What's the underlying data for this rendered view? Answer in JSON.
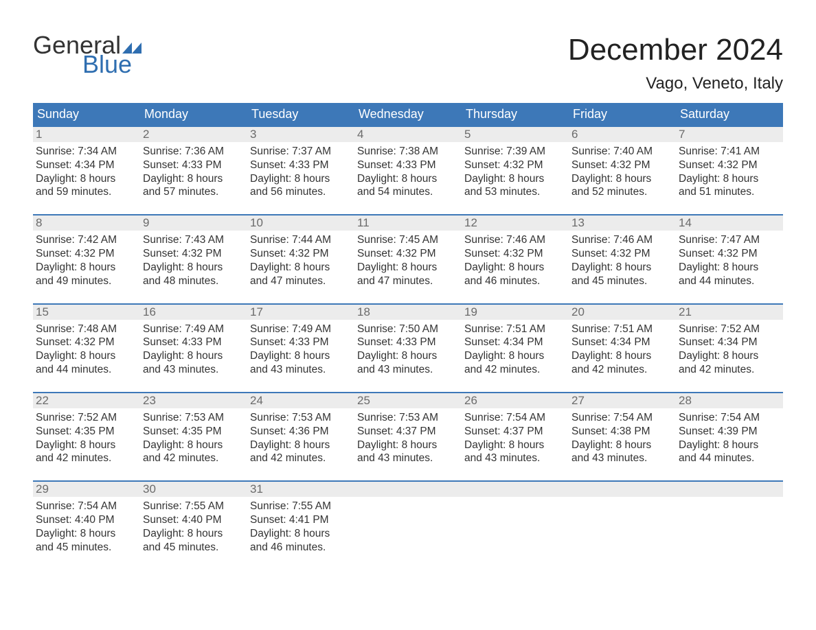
{
  "brand": {
    "word1": "General",
    "word2": "Blue",
    "color1": "#333333",
    "color2": "#2f6eb0"
  },
  "title": "December 2024",
  "location": "Vago, Veneto, Italy",
  "colors": {
    "header_bg": "#3d78b8",
    "header_text": "#ffffff",
    "daynum_bg": "#ececec",
    "daynum_text": "#6b6b6b",
    "body_text": "#333333",
    "week_border": "#3d78b8"
  },
  "fonts": {
    "title_size_pt": 33,
    "location_size_pt": 18,
    "dow_size_pt": 14,
    "body_size_pt": 12
  },
  "calendar": {
    "type": "table",
    "columns": [
      "Sunday",
      "Monday",
      "Tuesday",
      "Wednesday",
      "Thursday",
      "Friday",
      "Saturday"
    ],
    "weeks": [
      [
        {
          "n": "1",
          "sunrise": "7:34 AM",
          "sunset": "4:34 PM",
          "dl1": "8 hours",
          "dl2": "and 59 minutes."
        },
        {
          "n": "2",
          "sunrise": "7:36 AM",
          "sunset": "4:33 PM",
          "dl1": "8 hours",
          "dl2": "and 57 minutes."
        },
        {
          "n": "3",
          "sunrise": "7:37 AM",
          "sunset": "4:33 PM",
          "dl1": "8 hours",
          "dl2": "and 56 minutes."
        },
        {
          "n": "4",
          "sunrise": "7:38 AM",
          "sunset": "4:33 PM",
          "dl1": "8 hours",
          "dl2": "and 54 minutes."
        },
        {
          "n": "5",
          "sunrise": "7:39 AM",
          "sunset": "4:32 PM",
          "dl1": "8 hours",
          "dl2": "and 53 minutes."
        },
        {
          "n": "6",
          "sunrise": "7:40 AM",
          "sunset": "4:32 PM",
          "dl1": "8 hours",
          "dl2": "and 52 minutes."
        },
        {
          "n": "7",
          "sunrise": "7:41 AM",
          "sunset": "4:32 PM",
          "dl1": "8 hours",
          "dl2": "and 51 minutes."
        }
      ],
      [
        {
          "n": "8",
          "sunrise": "7:42 AM",
          "sunset": "4:32 PM",
          "dl1": "8 hours",
          "dl2": "and 49 minutes."
        },
        {
          "n": "9",
          "sunrise": "7:43 AM",
          "sunset": "4:32 PM",
          "dl1": "8 hours",
          "dl2": "and 48 minutes."
        },
        {
          "n": "10",
          "sunrise": "7:44 AM",
          "sunset": "4:32 PM",
          "dl1": "8 hours",
          "dl2": "and 47 minutes."
        },
        {
          "n": "11",
          "sunrise": "7:45 AM",
          "sunset": "4:32 PM",
          "dl1": "8 hours",
          "dl2": "and 47 minutes."
        },
        {
          "n": "12",
          "sunrise": "7:46 AM",
          "sunset": "4:32 PM",
          "dl1": "8 hours",
          "dl2": "and 46 minutes."
        },
        {
          "n": "13",
          "sunrise": "7:46 AM",
          "sunset": "4:32 PM",
          "dl1": "8 hours",
          "dl2": "and 45 minutes."
        },
        {
          "n": "14",
          "sunrise": "7:47 AM",
          "sunset": "4:32 PM",
          "dl1": "8 hours",
          "dl2": "and 44 minutes."
        }
      ],
      [
        {
          "n": "15",
          "sunrise": "7:48 AM",
          "sunset": "4:32 PM",
          "dl1": "8 hours",
          "dl2": "and 44 minutes."
        },
        {
          "n": "16",
          "sunrise": "7:49 AM",
          "sunset": "4:33 PM",
          "dl1": "8 hours",
          "dl2": "and 43 minutes."
        },
        {
          "n": "17",
          "sunrise": "7:49 AM",
          "sunset": "4:33 PM",
          "dl1": "8 hours",
          "dl2": "and 43 minutes."
        },
        {
          "n": "18",
          "sunrise": "7:50 AM",
          "sunset": "4:33 PM",
          "dl1": "8 hours",
          "dl2": "and 43 minutes."
        },
        {
          "n": "19",
          "sunrise": "7:51 AM",
          "sunset": "4:34 PM",
          "dl1": "8 hours",
          "dl2": "and 42 minutes."
        },
        {
          "n": "20",
          "sunrise": "7:51 AM",
          "sunset": "4:34 PM",
          "dl1": "8 hours",
          "dl2": "and 42 minutes."
        },
        {
          "n": "21",
          "sunrise": "7:52 AM",
          "sunset": "4:34 PM",
          "dl1": "8 hours",
          "dl2": "and 42 minutes."
        }
      ],
      [
        {
          "n": "22",
          "sunrise": "7:52 AM",
          "sunset": "4:35 PM",
          "dl1": "8 hours",
          "dl2": "and 42 minutes."
        },
        {
          "n": "23",
          "sunrise": "7:53 AM",
          "sunset": "4:35 PM",
          "dl1": "8 hours",
          "dl2": "and 42 minutes."
        },
        {
          "n": "24",
          "sunrise": "7:53 AM",
          "sunset": "4:36 PM",
          "dl1": "8 hours",
          "dl2": "and 42 minutes."
        },
        {
          "n": "25",
          "sunrise": "7:53 AM",
          "sunset": "4:37 PM",
          "dl1": "8 hours",
          "dl2": "and 43 minutes."
        },
        {
          "n": "26",
          "sunrise": "7:54 AM",
          "sunset": "4:37 PM",
          "dl1": "8 hours",
          "dl2": "and 43 minutes."
        },
        {
          "n": "27",
          "sunrise": "7:54 AM",
          "sunset": "4:38 PM",
          "dl1": "8 hours",
          "dl2": "and 43 minutes."
        },
        {
          "n": "28",
          "sunrise": "7:54 AM",
          "sunset": "4:39 PM",
          "dl1": "8 hours",
          "dl2": "and 44 minutes."
        }
      ],
      [
        {
          "n": "29",
          "sunrise": "7:54 AM",
          "sunset": "4:40 PM",
          "dl1": "8 hours",
          "dl2": "and 45 minutes."
        },
        {
          "n": "30",
          "sunrise": "7:55 AM",
          "sunset": "4:40 PM",
          "dl1": "8 hours",
          "dl2": "and 45 minutes."
        },
        {
          "n": "31",
          "sunrise": "7:55 AM",
          "sunset": "4:41 PM",
          "dl1": "8 hours",
          "dl2": "and 46 minutes."
        },
        null,
        null,
        null,
        null
      ]
    ],
    "labels": {
      "sunrise": "Sunrise:",
      "sunset": "Sunset:",
      "daylight": "Daylight:"
    }
  }
}
